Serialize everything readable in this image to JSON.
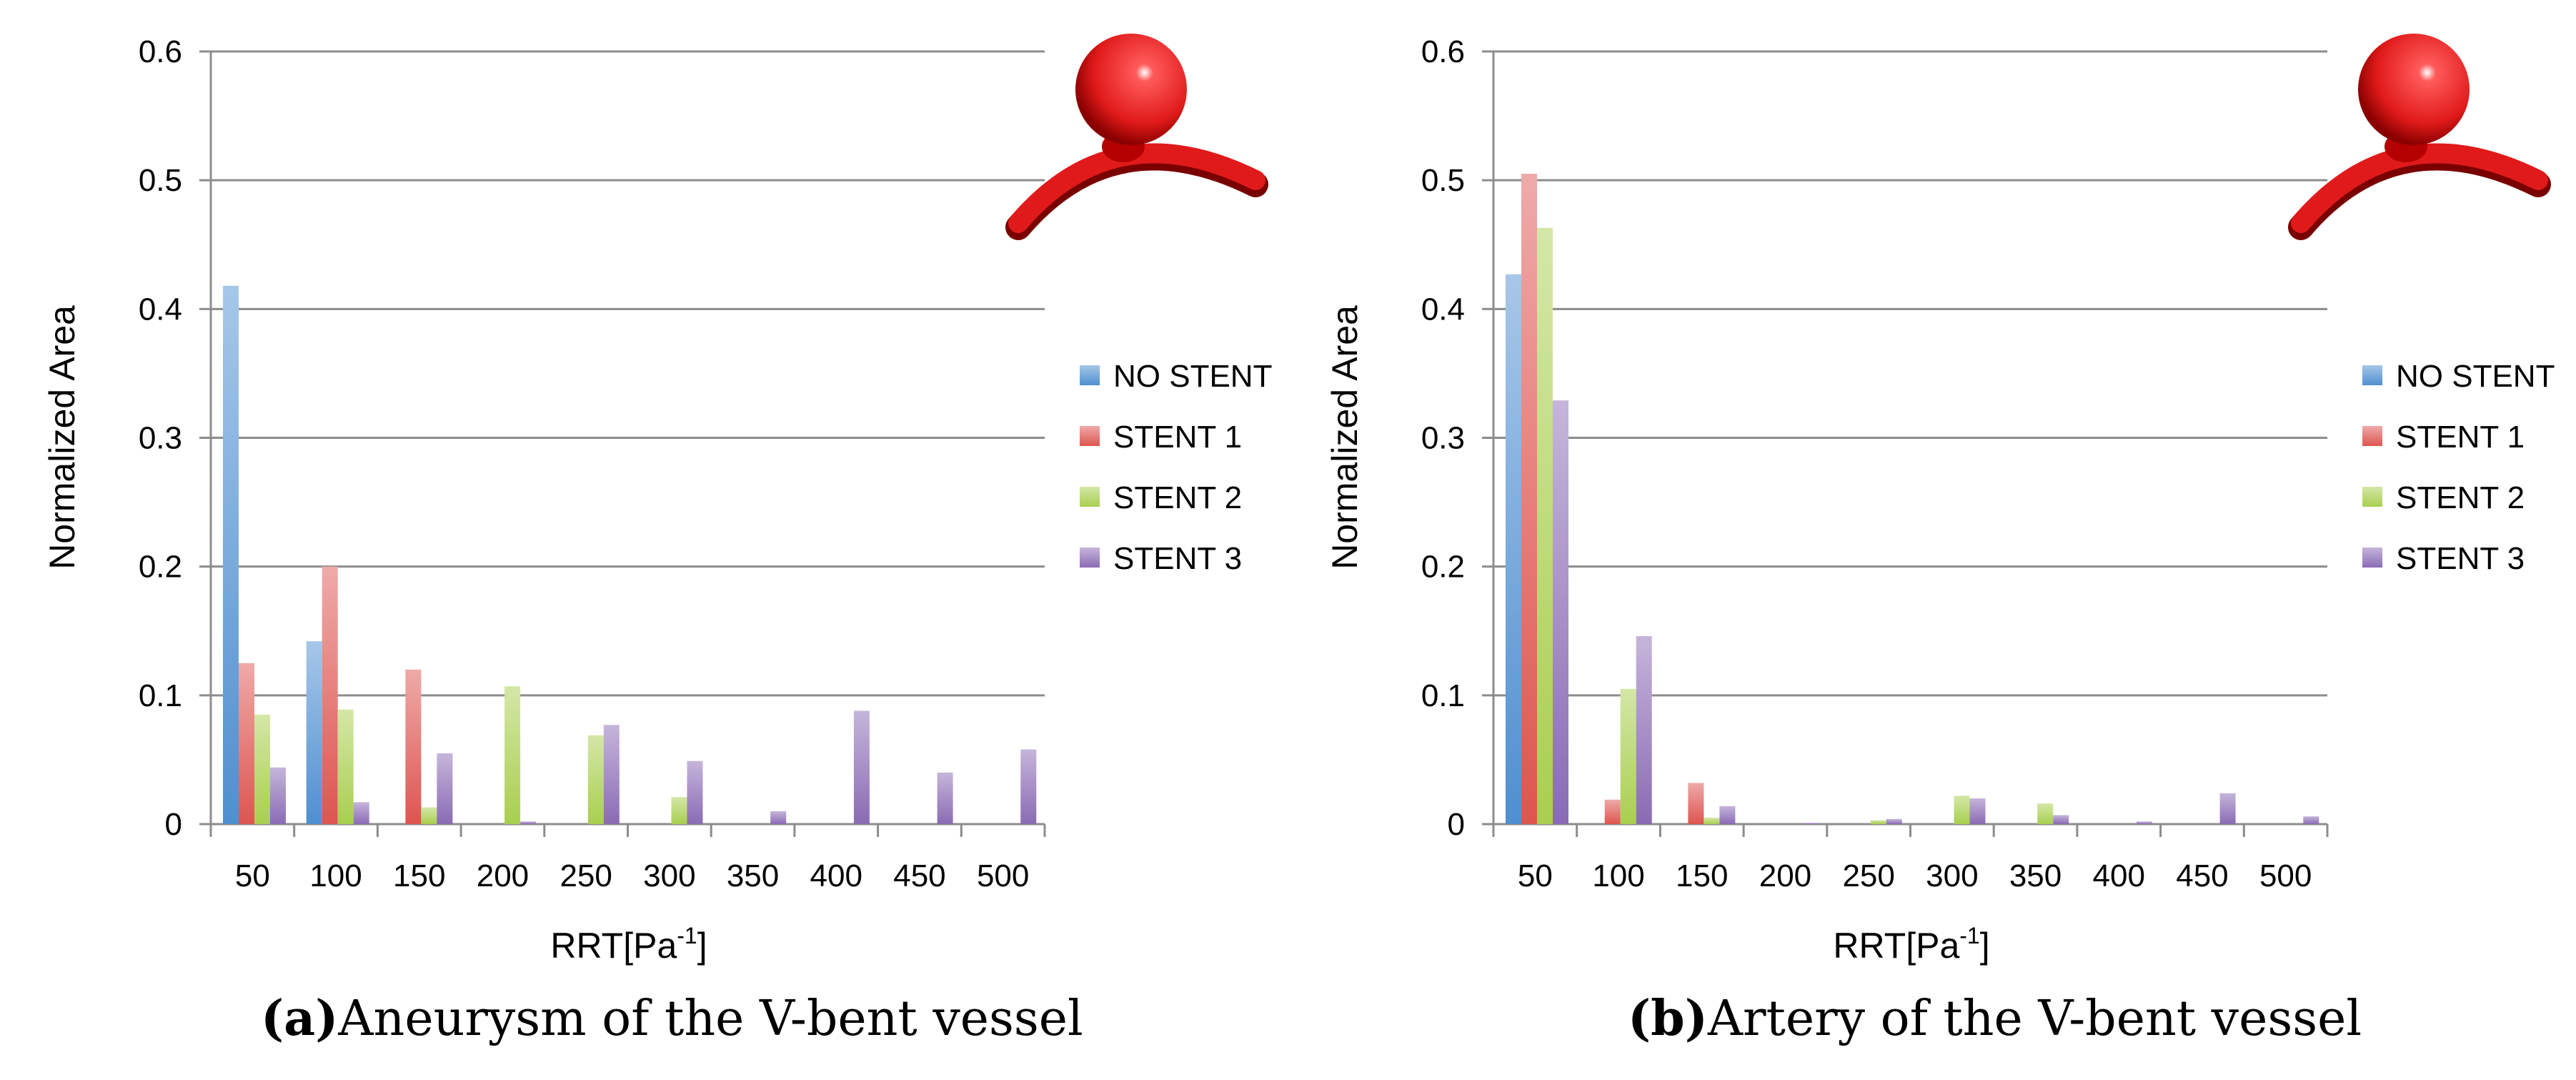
{
  "colors": {
    "no_stent": "#4f8fd0",
    "stent_1": "#dd5550",
    "stent_2": "#a8cf4f",
    "stent_3": "#8a6bb4",
    "gridline": "#8c8c8c",
    "axis": "#8c8c8c",
    "model": "#e01a1a"
  },
  "icons": {
    "model": "v-bent-vessel-with-aneurysm-icon"
  },
  "chart_data": [
    {
      "id": "a",
      "type": "bar",
      "caption_label": "(a)",
      "caption_text": "Aneurysm of the V-bent vessel",
      "xlabel": "RRT[Pa",
      "xlabel_sup": "-1",
      "xlabel_end": "]",
      "ylabel": "Normalized Area",
      "ylim": [
        0,
        0.6
      ],
      "yticks": [
        "0",
        "0.1",
        "0.2",
        "0.3",
        "0.4",
        "0.5",
        "0.6"
      ],
      "categories": [
        "50",
        "100",
        "150",
        "200",
        "250",
        "300",
        "350",
        "400",
        "450",
        "500"
      ],
      "series": [
        {
          "name": "NO STENT",
          "values": [
            0.418,
            0.142,
            0.0,
            0.0,
            0.0,
            0.0,
            0.0,
            0.0,
            0.0,
            0.0
          ]
        },
        {
          "name": "STENT 1",
          "values": [
            0.125,
            0.2,
            0.12,
            0.0,
            0.0,
            0.0,
            0.0,
            0.0,
            0.0,
            0.0
          ]
        },
        {
          "name": "STENT 2",
          "values": [
            0.085,
            0.089,
            0.013,
            0.107,
            0.069,
            0.021,
            0.0,
            0.0,
            0.0,
            0.0
          ]
        },
        {
          "name": "STENT 3",
          "values": [
            0.044,
            0.017,
            0.055,
            0.002,
            0.077,
            0.049,
            0.01,
            0.088,
            0.04,
            0.058
          ]
        }
      ],
      "legend": [
        "NO STENT",
        "STENT 1",
        "STENT 2",
        "STENT 3"
      ]
    },
    {
      "id": "b",
      "type": "bar",
      "caption_label": "(b)",
      "caption_text": "Artery of the V-bent vessel",
      "xlabel": "RRT[Pa",
      "xlabel_sup": "-1",
      "xlabel_end": "]",
      "ylabel": "Normalized Area",
      "ylim": [
        0,
        0.6
      ],
      "yticks": [
        "0",
        "0.1",
        "0.2",
        "0.3",
        "0.4",
        "0.5",
        "0.6"
      ],
      "categories": [
        "50",
        "100",
        "150",
        "200",
        "250",
        "300",
        "350",
        "400",
        "450",
        "500"
      ],
      "series": [
        {
          "name": "NO STENT",
          "values": [
            0.427,
            0.0,
            0.0,
            0.0,
            0.0,
            0.0,
            0.0,
            0.0,
            0.0,
            0.0
          ]
        },
        {
          "name": "STENT 1",
          "values": [
            0.505,
            0.019,
            0.032,
            0.0,
            0.0,
            0.0,
            0.0,
            0.0,
            0.0,
            0.0
          ]
        },
        {
          "name": "STENT 2",
          "values": [
            0.463,
            0.105,
            0.005,
            0.0,
            0.003,
            0.022,
            0.016,
            0.0,
            0.0,
            0.0
          ]
        },
        {
          "name": "STENT 3",
          "values": [
            0.329,
            0.146,
            0.014,
            0.001,
            0.004,
            0.02,
            0.007,
            0.002,
            0.024,
            0.006
          ]
        }
      ],
      "legend": [
        "NO STENT",
        "STENT 1",
        "STENT 2",
        "STENT 3"
      ]
    }
  ]
}
